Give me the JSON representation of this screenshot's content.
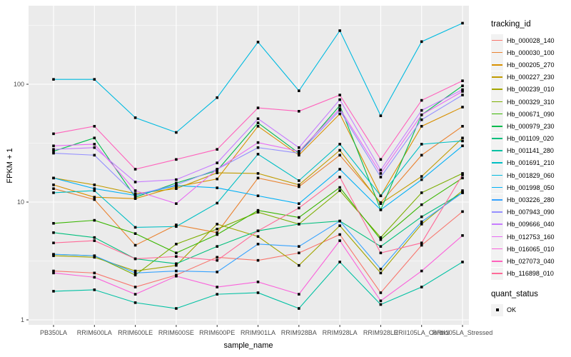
{
  "chart_data": {
    "type": "line",
    "title": "",
    "xlabel": "sample_name",
    "ylabel": "FPKM + 1",
    "y_scale": "log10",
    "y_ticks": [
      "1",
      "10",
      "100"
    ],
    "ylim": [
      1,
      450
    ],
    "grid": true,
    "legend_position": "right",
    "legend_title": "tracking_id",
    "point_color": "#000000",
    "panel_bg": "#EBEBEB",
    "grid_color": "#FFFFFF",
    "axis_text_color": "#4D4D4D",
    "categories": [
      "PB350LA",
      "RRIM600LA",
      "RRIM600LE",
      "RRIM600SE",
      "RRIM600PE",
      "RRIM901LA",
      "RRIM928BA",
      "RRIM928LA",
      "RRIM928LE",
      "RRII105LA_Control",
      "RRII105LA_Stressed"
    ],
    "series": [
      {
        "name": "Hb_000028_140",
        "color": "#F8766D",
        "values": [
          2.6,
          2.5,
          1.9,
          2.4,
          3.4,
          3.2,
          3.7,
          5.3,
          1.7,
          4.3,
          8.3
        ]
      },
      {
        "name": "Hb_000030_100",
        "color": "#EA8331",
        "values": [
          13,
          10.5,
          4.3,
          6.4,
          5.5,
          16,
          13.5,
          25,
          9.9,
          25,
          44
        ]
      },
      {
        "name": "Hb_000205_270",
        "color": "#D89000",
        "values": [
          14,
          11,
          10.7,
          13.5,
          15.7,
          44,
          25,
          56,
          11.3,
          44,
          64
        ]
      },
      {
        "name": "Hb_000227_230",
        "color": "#C09B00",
        "values": [
          16,
          14,
          11.8,
          13,
          17.7,
          17.5,
          14,
          27.5,
          9.7,
          16.5,
          35
        ]
      },
      {
        "name": "Hb_000239_010",
        "color": "#A3A500",
        "values": [
          3.5,
          3.4,
          2.6,
          2.9,
          6.5,
          5.1,
          2.9,
          6.3,
          2.5,
          6.5,
          12.5
        ]
      },
      {
        "name": "Hb_000329_310",
        "color": "#7CAE00",
        "values": [
          3.6,
          3.5,
          2.4,
          4.4,
          5.9,
          8.2,
          6.5,
          12.5,
          5.0,
          12,
          17.5
        ]
      },
      {
        "name": "Hb_000671_090",
        "color": "#39B600",
        "values": [
          6.6,
          7.0,
          5.4,
          3.7,
          5.3,
          8.5,
          7.4,
          13.3,
          4.8,
          9.5,
          16
        ]
      },
      {
        "name": "Hb_000979_230",
        "color": "#00BB4E",
        "values": [
          27,
          35,
          11,
          14.5,
          18.5,
          47,
          26,
          66,
          8.6,
          55,
          97
        ]
      },
      {
        "name": "Hb_001109_020",
        "color": "#00BF7D",
        "values": [
          5.5,
          5.0,
          3.3,
          3.0,
          4.2,
          5.7,
          6.5,
          6.9,
          4.2,
          7.5,
          12
        ]
      },
      {
        "name": "Hb_001141_280",
        "color": "#00C1A3",
        "values": [
          1.75,
          1.8,
          1.4,
          1.25,
          1.65,
          1.7,
          1.25,
          3.1,
          1.35,
          1.9,
          3.1
        ]
      },
      {
        "name": "Hb_001691_210",
        "color": "#00BFC4",
        "values": [
          12,
          12.5,
          6.1,
          6.2,
          9.8,
          25.5,
          15.2,
          31,
          11.3,
          31,
          33
        ]
      },
      {
        "name": "Hb_001829_060",
        "color": "#00BAE0",
        "values": [
          110,
          110,
          52,
          39,
          77,
          228,
          88,
          285,
          54,
          230,
          330
        ]
      },
      {
        "name": "Hb_001998_050",
        "color": "#00B0F6",
        "values": [
          16,
          13,
          11.4,
          13.8,
          13.2,
          11.3,
          9.7,
          19,
          8.6,
          15.5,
          30
        ]
      },
      {
        "name": "Hb_003226_280",
        "color": "#35A2FF",
        "values": [
          3.6,
          3.5,
          2.5,
          2.6,
          2.55,
          4.4,
          4.2,
          6.9,
          2.7,
          6.8,
          12
        ]
      },
      {
        "name": "Hb_007943_090",
        "color": "#9590FF",
        "values": [
          26,
          25,
          11.5,
          14,
          19,
          29,
          26,
          60,
          16.3,
          50,
          81
        ]
      },
      {
        "name": "Hb_009666_040",
        "color": "#C77CFF",
        "values": [
          28,
          29,
          14.8,
          15.5,
          21.5,
          51,
          29,
          74,
          18.7,
          60,
          90
        ]
      },
      {
        "name": "Hb_012753_160",
        "color": "#E76BF3",
        "values": [
          30,
          31,
          12.5,
          9.7,
          19,
          32,
          27,
          62,
          17.5,
          55,
          87
        ]
      },
      {
        "name": "Hb_016065_010",
        "color": "#FA62DB",
        "values": [
          2.5,
          2.3,
          1.65,
          2.35,
          1.9,
          2.1,
          1.65,
          4.7,
          1.45,
          2.6,
          5.2
        ]
      },
      {
        "name": "Hb_027073_040",
        "color": "#FF62BC",
        "values": [
          38,
          44,
          19,
          23,
          28,
          63,
          59,
          81,
          23,
          73,
          107
        ]
      },
      {
        "name": "Hb_116898_010",
        "color": "#FF6A98",
        "values": [
          4.5,
          4.7,
          3.3,
          3.45,
          3.2,
          5.7,
          8.9,
          16.3,
          3.7,
          4.5,
          17
        ]
      }
    ],
    "quant_legend": {
      "title": "quant_status",
      "items": [
        "OK"
      ]
    }
  }
}
